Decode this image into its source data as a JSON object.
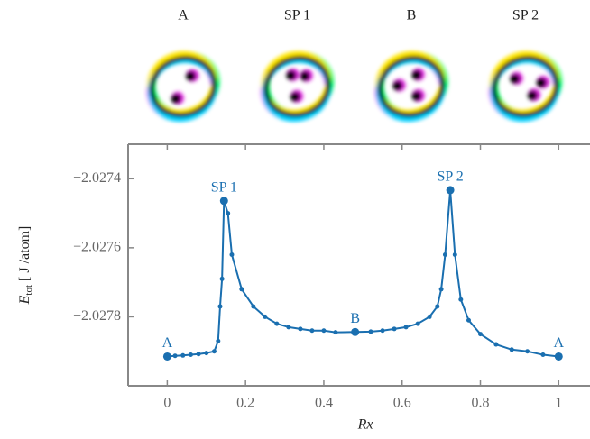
{
  "chart_data": {
    "type": "line",
    "snapshots": [
      "A",
      "SP 1",
      "B",
      "SP 2"
    ],
    "xlabel": "Rx",
    "ylabel": {
      "symbol": "E",
      "subscript": "tot",
      "unit": "[ J /atom]"
    },
    "xlim": [
      -0.1,
      1.08
    ],
    "ylim": [
      -2.028,
      -2.0273
    ],
    "xticks": [
      0,
      0.2,
      0.4,
      0.6,
      0.8,
      1
    ],
    "yticks": [
      {
        "value": -2.0278,
        "label": "−2.0278"
      },
      {
        "value": -2.0276,
        "label": "−2.0276"
      },
      {
        "value": -2.0274,
        "label": "−2.0274"
      }
    ],
    "series": [
      {
        "color": "#1a6fb0",
        "x": [
          0,
          0.02,
          0.04,
          0.06,
          0.08,
          0.1,
          0.12,
          0.13,
          0.135,
          0.14,
          0.145,
          0.155,
          0.165,
          0.19,
          0.22,
          0.25,
          0.28,
          0.31,
          0.34,
          0.37,
          0.4,
          0.43,
          0.48,
          0.52,
          0.55,
          0.58,
          0.61,
          0.64,
          0.67,
          0.69,
          0.7,
          0.71,
          0.723,
          0.735,
          0.75,
          0.77,
          0.8,
          0.84,
          0.88,
          0.92,
          0.96,
          1
        ],
        "values": [
          -2.027915,
          -2.027913,
          -2.027912,
          -2.02791,
          -2.027908,
          -2.027905,
          -2.0279,
          -2.02787,
          -2.02777,
          -2.02769,
          -2.027464,
          -2.0275,
          -2.02762,
          -2.02772,
          -2.02777,
          -2.0278,
          -2.02782,
          -2.02783,
          -2.027835,
          -2.02784,
          -2.02784,
          -2.027845,
          -2.027844,
          -2.027843,
          -2.02784,
          -2.027835,
          -2.02783,
          -2.02782,
          -2.0278,
          -2.02777,
          -2.02772,
          -2.02762,
          -2.027433,
          -2.02762,
          -2.02775,
          -2.02781,
          -2.02785,
          -2.02788,
          -2.027895,
          -2.0279,
          -2.02791,
          -2.027915
        ],
        "point_labels": [
          "A",
          null,
          null,
          null,
          null,
          null,
          null,
          null,
          null,
          null,
          "SP 1",
          null,
          null,
          null,
          null,
          null,
          null,
          null,
          null,
          null,
          null,
          null,
          "B",
          null,
          null,
          null,
          null,
          null,
          null,
          null,
          null,
          null,
          "SP 2",
          null,
          null,
          null,
          null,
          null,
          null,
          null,
          null,
          "A"
        ]
      }
    ]
  }
}
